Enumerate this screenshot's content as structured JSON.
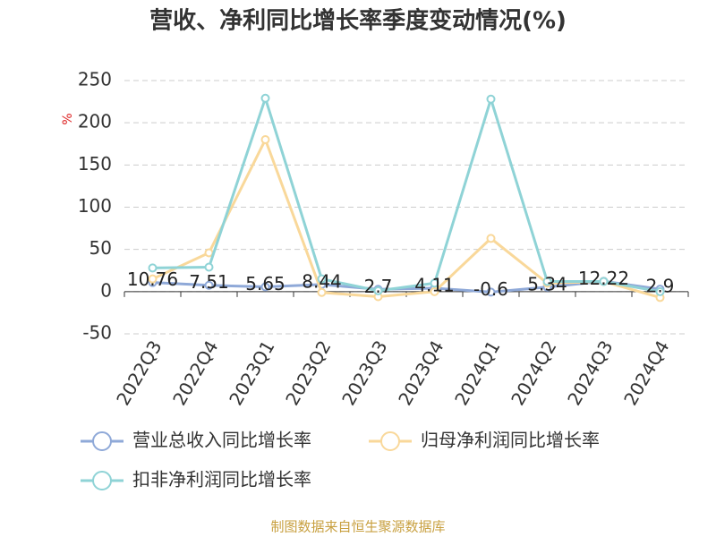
{
  "chart_data": {
    "type": "line",
    "title": "营收、净利同比增长率季度变动情况(%)",
    "y_label": "%",
    "footer": "制图数据来自恒生聚源数据库",
    "categories": [
      "2022Q3",
      "2022Q4",
      "2023Q1",
      "2023Q2",
      "2023Q3",
      "2023Q4",
      "2024Q1",
      "2024Q2",
      "2024Q3",
      "2024Q4"
    ],
    "series": [
      {
        "name": "营业总收入同比增长率",
        "color": "#8fa9d8",
        "values": [
          10.76,
          7.51,
          5.65,
          8.44,
          2.7,
          4.11,
          -0.6,
          5.34,
          12.22,
          2.9
        ],
        "show_labels": true
      },
      {
        "name": "归母净利润同比增长率",
        "color": "#f9d89a",
        "values": [
          15,
          46,
          180,
          -1,
          -6,
          0,
          63,
          10,
          12,
          -7
        ]
      },
      {
        "name": "扣非净利润同比增长率",
        "color": "#8fd3d6",
        "values": [
          28,
          29,
          229,
          15,
          1,
          10,
          228,
          12,
          12,
          0
        ]
      }
    ],
    "ylim": [
      -50,
      250
    ],
    "yticks": [
      -50,
      0,
      50,
      100,
      150,
      200,
      250
    ],
    "grid": true
  }
}
